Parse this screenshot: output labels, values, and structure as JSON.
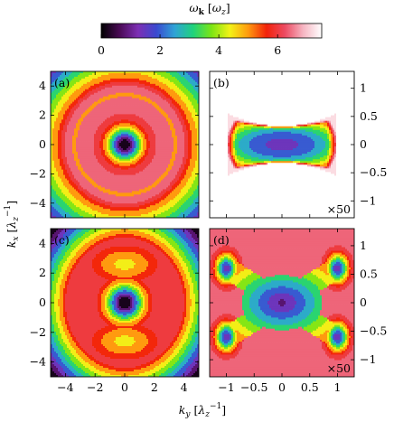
{
  "chart_data": {
    "type": "heatmap",
    "colorbar": {
      "title_main": "ω",
      "title_sub": "k",
      "title_unit_main": "ω",
      "title_unit_sub": "z",
      "range": [
        0,
        7.5
      ],
      "ticks": [
        0,
        2,
        4,
        6
      ],
      "tick_labels": [
        "0",
        "2",
        "4",
        "6"
      ],
      "colors": [
        "#000000",
        "#4a0a55",
        "#7d2fb4",
        "#3a49d0",
        "#2fa3d6",
        "#1fd27c",
        "#7be515",
        "#f2f217",
        "#ff9a0f",
        "#f2220a",
        "#ec4b62",
        "#f6b6c3",
        "#ffffff"
      ]
    },
    "y_axis": {
      "label_main": "k",
      "label_sub": "x",
      "label_unit_main": "λ",
      "label_unit_sub": "z",
      "label_unit_sup": "−1"
    },
    "x_axis": {
      "label_main": "k",
      "label_sub": "y",
      "label_unit_main": "λ",
      "label_unit_sub": "z",
      "label_unit_sup": "−1"
    },
    "left_axes": {
      "range": [
        -5,
        5
      ],
      "ticks": [
        -4,
        -2,
        0,
        2,
        4
      ],
      "tick_labels": [
        "−4",
        "−2",
        "0",
        "2",
        "4"
      ]
    },
    "right_axes": {
      "range": [
        -1.3,
        1.3
      ],
      "ticks": [
        -1,
        -0.5,
        0,
        0.5,
        1
      ],
      "y_tick_labels": [
        "−1",
        "−0.5",
        "0",
        "0.5",
        "1"
      ],
      "x_tick_labels": [
        "−1",
        "−0.5",
        "0",
        "0.5",
        "1"
      ]
    },
    "panels": [
      {
        "id": "a",
        "label": "(a)",
        "scale_note": "",
        "description": "circularly symmetric; minimum 0 at origin rising to ~6.3 plateau; bright ring at |k|≈3.4; decreasing to ~4.8 at |k|≈4.8",
        "center_value": 0,
        "plateau_value": 6.3,
        "ring_radius": 3.4,
        "ring_value": 4.9
      },
      {
        "id": "b",
        "label": "(b)",
        "scale_note": "×50",
        "description": "bow-tie shaped minimum around origin, extending |ky|≤0.9, |kx|≤0.45",
        "center_value": 0
      },
      {
        "id": "c",
        "label": "(c)",
        "scale_note": "",
        "description": "anisotropic; minimum 0 at origin; elongated low region along kx with lobes near kx≈±3",
        "center_value": 0
      },
      {
        "id": "d",
        "label": "(d)",
        "scale_note": "×50",
        "description": "X-shaped structure with four low-value lobes near (ky,kx)≈(±1,±0.6)",
        "center_value": 0
      }
    ]
  }
}
